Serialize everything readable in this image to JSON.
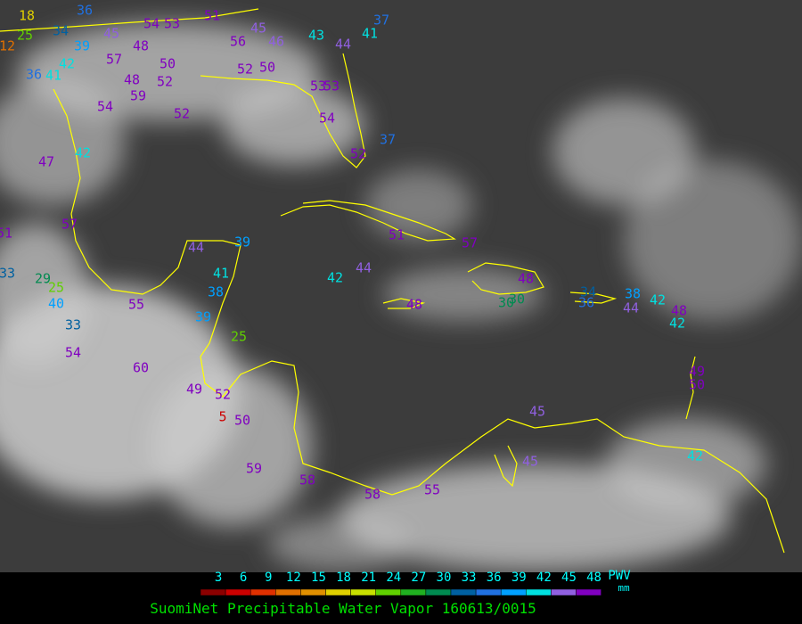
{
  "stations": [
    18,
    25,
    12,
    34,
    39,
    42,
    36,
    41,
    36,
    45,
    57,
    48,
    50,
    52,
    48,
    59,
    54,
    52,
    51,
    53,
    54,
    56,
    46,
    45,
    43,
    44,
    41,
    37,
    52,
    50,
    53,
    53,
    54,
    52,
    37,
    47,
    42,
    57,
    51,
    33,
    29,
    25,
    40,
    33,
    54,
    55,
    60,
    49,
    52,
    5,
    50,
    44,
    39,
    41,
    38,
    39,
    25,
    42,
    44,
    51,
    57,
    48,
    48,
    30,
    30,
    36,
    34,
    38,
    42,
    44,
    48,
    42,
    49,
    50,
    45,
    45,
    42,
    59,
    58,
    58,
    55
  ],
  "scale": {
    "ticks": [
      3,
      6,
      9,
      12,
      15,
      18,
      21,
      24,
      27,
      30,
      33,
      36,
      39,
      42,
      45,
      48
    ],
    "name": "PWV",
    "unit": "mm"
  },
  "caption": "SuomiNet Precipitable Water Vapor 160613/0015"
}
